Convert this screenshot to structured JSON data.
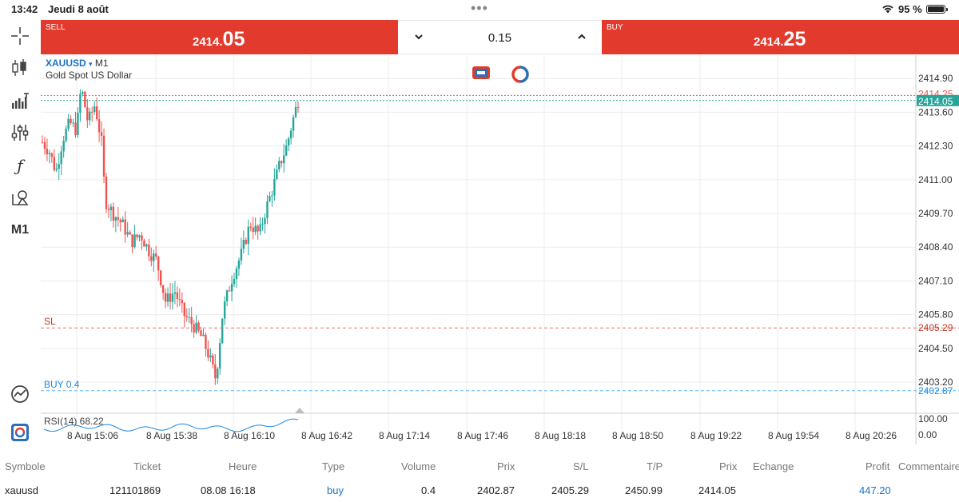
{
  "status_bar": {
    "time": "13:42",
    "date": "Jeudi 8 août",
    "dots": "•••",
    "battery": "95 %"
  },
  "toolbar": {
    "items": [
      {
        "icon": "crosshair-icon"
      },
      {
        "icon": "chart-type-icon"
      },
      {
        "icon": "indicators-icon"
      },
      {
        "icon": "settings-sliders-icon"
      },
      {
        "icon": "function-icon"
      },
      {
        "icon": "objects-icon"
      },
      {
        "icon": "timeframe-label",
        "label": "M1"
      },
      {
        "icon": "signals-icon"
      },
      {
        "icon": "trade-app-icon"
      }
    ]
  },
  "trade": {
    "sell_label": "SELL",
    "sell_price_small": "2414.",
    "sell_price_big": "05",
    "buy_label": "BUY",
    "buy_price_small": "2414.",
    "buy_price_big": "25",
    "volume": "0.15",
    "colors": {
      "sell": "#e23b2e",
      "buy": "#e23b2e"
    }
  },
  "chart": {
    "symbol": "XAUUSD",
    "arrow": "▾",
    "timeframe": "M1",
    "description": "Gold Spot US Dollar",
    "sl_label": "SL",
    "buy_line_label": "BUY 0.4",
    "rsi_label": "RSI(14) 68.22",
    "colors": {
      "bull": "#26a69a",
      "bear": "#ef5350",
      "sl": "#e57373",
      "buy": "#64b5f6",
      "rsi": "#1e88e5"
    }
  },
  "chart_data": {
    "type": "candlestick",
    "title": "",
    "xlabel": "",
    "ylabel": "",
    "ylim": [
      2402.0,
      2415.8
    ],
    "y_ticks": [
      "2414.90",
      "2413.60",
      "2412.30",
      "2411.00",
      "2409.70",
      "2408.40",
      "2407.10",
      "2405.80",
      "2404.50",
      "2403.20"
    ],
    "y_tick_values": [
      2414.9,
      2413.6,
      2412.3,
      2411.0,
      2409.7,
      2408.4,
      2407.1,
      2405.8,
      2404.5,
      2403.2
    ],
    "x_ticks": [
      "8 Aug 15:06",
      "8 Aug 15:38",
      "8 Aug 16:10",
      "8 Aug 16:42",
      "8 Aug 17:14",
      "8 Aug 17:46",
      "8 Aug 18:18",
      "8 Aug 18:50",
      "8 Aug 19:22",
      "8 Aug 19:54",
      "8 Aug 20:26"
    ],
    "price_labels": {
      "bid": "2414.05",
      "ask": "2414.25",
      "sl": "2405.29",
      "buy": "2402.87"
    },
    "levels": {
      "ask": 2414.25,
      "bid": 2414.05,
      "sl": 2405.29,
      "buy": 2402.87
    },
    "rsi": {
      "value": 68.22,
      "ticks": [
        "100.00",
        "0.00"
      ]
    },
    "grid": true
  },
  "table": {
    "headers": [
      "Symbole",
      "Ticket",
      "Heure",
      "Type",
      "Volume",
      "Prix",
      "S/L",
      "T/P",
      "Prix",
      "Echange",
      "Profit",
      "Commentaire"
    ],
    "row": [
      "xauusd",
      "121101869",
      "08.08 16:18",
      "buy",
      "0.4",
      "2402.87",
      "2405.29",
      "2450.99",
      "2414.05",
      "",
      "447.20",
      ""
    ]
  }
}
